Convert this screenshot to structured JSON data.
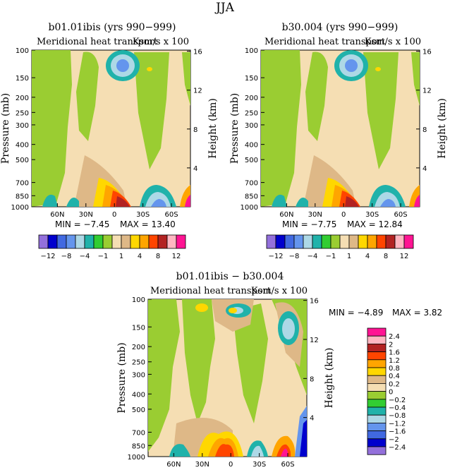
{
  "figure_title": "JJA",
  "panels": [
    {
      "title": "b01.01ibis (yrs 990−999)",
      "subtitle_left": "Meridional heat transport",
      "subtitle_right": "Ksm/s x 100",
      "min_text": "MIN =   −7.45",
      "max_text": "MAX =  13.40"
    },
    {
      "title": "b30.004 (yrs 990−999)",
      "subtitle_left": "Meridional heat transport",
      "subtitle_right": "Ksm/s x 100",
      "min_text": "MIN =   −7.75",
      "max_text": "MAX =  12.84"
    },
    {
      "title": "b01.01ibis − b30.004",
      "subtitle_left": "Meridional heat transport",
      "subtitle_right": "Ksm/s x 100",
      "min_text": "MIN =  −4.89",
      "max_text": "MAX =   3.82"
    }
  ],
  "axes": {
    "ylabel_left": "Pressure (mb)",
    "ylabel_right": "Height (km)",
    "pressure_ticks": [
      "100",
      "150",
      "200",
      "250",
      "300",
      "400",
      "500",
      "700",
      "850",
      "1000"
    ],
    "pressure_values": [
      100,
      150,
      200,
      250,
      300,
      400,
      500,
      700,
      850,
      1000
    ],
    "height_ticks": [
      "16",
      "12",
      "8",
      "4"
    ],
    "height_values": [
      16,
      12,
      8,
      4
    ],
    "lat_ticks": [
      "60N",
      "30N",
      "0",
      "30S",
      "60S"
    ],
    "lat_values": [
      60,
      30,
      0,
      -30,
      -60
    ]
  },
  "colorbar_main": {
    "colors": [
      "#9370db",
      "#0000cd",
      "#4169e1",
      "#6495ed",
      "#add8e6",
      "#20b2aa",
      "#32cd32",
      "#9acd32",
      "#f5deb3",
      "#deb887",
      "#ffd700",
      "#ffa500",
      "#ff4500",
      "#b22222",
      "#ffb6c1",
      "#ff1493"
    ],
    "labels": [
      "−12",
      "−8",
      "−4",
      "−1",
      "1",
      "4",
      "8",
      "12"
    ]
  },
  "colorbar_diff": {
    "colors": [
      "#9370db",
      "#0000cd",
      "#4169e1",
      "#6495ed",
      "#add8e6",
      "#20b2aa",
      "#32cd32",
      "#9acd32",
      "#f5deb3",
      "#deb887",
      "#ffd700",
      "#ffa500",
      "#ff4500",
      "#b22222",
      "#ffb6c1",
      "#ff1493"
    ],
    "labels": [
      "2.4",
      "2",
      "1.6",
      "1.2",
      "0.8",
      "0.4",
      "0.2",
      "0",
      "−0.2",
      "−0.4",
      "−0.8",
      "−1.2",
      "−1.6",
      "−2",
      "−2.4"
    ]
  },
  "chart_data": [
    {
      "type": "heatmap",
      "title": "b01.01ibis (yrs 990−999)",
      "subtitle": "Meridional heat transport  Ksm/s x 100",
      "x": [
        "60N",
        "30N",
        "0",
        "30S",
        "60S"
      ],
      "y": [
        100,
        150,
        200,
        250,
        300,
        400,
        500,
        700,
        850,
        1000
      ],
      "xlabel": "",
      "ylabel": "Pressure (mb)",
      "ylabel_right": "Height (km)",
      "min": -7.45,
      "max": 13.4,
      "levels": [
        -12,
        -10,
        -8,
        -6,
        -4,
        -2,
        -1,
        0,
        1,
        2,
        4,
        6,
        8,
        10,
        12
      ]
    },
    {
      "type": "heatmap",
      "title": "b30.004 (yrs 990−999)",
      "subtitle": "Meridional heat transport  Ksm/s x 100",
      "x": [
        "60N",
        "30N",
        "0",
        "30S",
        "60S"
      ],
      "y": [
        100,
        150,
        200,
        250,
        300,
        400,
        500,
        700,
        850,
        1000
      ],
      "xlabel": "",
      "ylabel": "Pressure (mb)",
      "ylabel_right": "Height (km)",
      "min": -7.75,
      "max": 12.84,
      "levels": [
        -12,
        -10,
        -8,
        -6,
        -4,
        -2,
        -1,
        0,
        1,
        2,
        4,
        6,
        8,
        10,
        12
      ]
    },
    {
      "type": "heatmap",
      "title": "b01.01ibis − b30.004",
      "subtitle": "Meridional heat transport  Ksm/s x 100",
      "x": [
        "60N",
        "30N",
        "0",
        "30S",
        "60S"
      ],
      "y": [
        100,
        150,
        200,
        250,
        300,
        400,
        500,
        700,
        850,
        1000
      ],
      "xlabel": "",
      "ylabel": "Pressure (mb)",
      "ylabel_right": "Height (km)",
      "min": -4.89,
      "max": 3.82,
      "levels": [
        -2.4,
        -2,
        -1.6,
        -1.2,
        -0.8,
        -0.4,
        -0.2,
        0,
        0.2,
        0.4,
        0.8,
        1.2,
        1.6,
        2,
        2.4
      ]
    }
  ]
}
